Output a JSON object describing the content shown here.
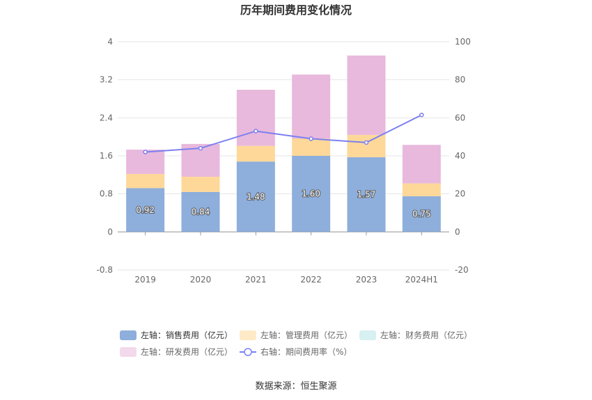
{
  "chart_data": {
    "type": "bar",
    "title": "历年期间费用变化情况",
    "categories": [
      "2019",
      "2020",
      "2021",
      "2022",
      "2023",
      "2024H1"
    ],
    "stacked": true,
    "y_left": {
      "min": -0.8,
      "max": 4,
      "ticks": [
        "-0.8",
        "0",
        "0.8",
        "1.6",
        "2.4",
        "3.2",
        "4"
      ]
    },
    "y_right": {
      "min": -20,
      "max": 100,
      "ticks": [
        "-20",
        "0",
        "20",
        "40",
        "60",
        "80",
        "100"
      ]
    },
    "grid": true,
    "legend_position": "bottom",
    "series": [
      {
        "name": "左轴：销售费用（亿元）",
        "axis": "left",
        "kind": "bar",
        "color": "#8eaedb",
        "values": [
          0.92,
          0.84,
          1.48,
          1.6,
          1.57,
          0.75
        ],
        "labels": [
          "0.92",
          "0.84",
          "1.48",
          "1.60",
          "1.57",
          "0.75"
        ]
      },
      {
        "name": "左轴：管理费用（亿元）",
        "axis": "left",
        "kind": "bar",
        "color": "#fdd899",
        "values": [
          0.3,
          0.32,
          0.33,
          0.36,
          0.47,
          0.27
        ]
      },
      {
        "name": "左轴：财务费用（亿元）",
        "axis": "left",
        "kind": "bar",
        "color": "#b6e4e6",
        "values": [
          0,
          0,
          0,
          0,
          0,
          0
        ]
      },
      {
        "name": "左轴：研发费用（亿元）",
        "axis": "left",
        "kind": "bar",
        "color": "#e8b9dc",
        "values": [
          0.51,
          0.69,
          1.18,
          1.35,
          1.67,
          0.81
        ]
      },
      {
        "name": "右轴：期间费用率（%）",
        "axis": "right",
        "kind": "line",
        "color": "#7b7ff0",
        "values": [
          42,
          44,
          53,
          49,
          47,
          61.5
        ]
      }
    ],
    "source": "数据来源：恒生聚源"
  }
}
